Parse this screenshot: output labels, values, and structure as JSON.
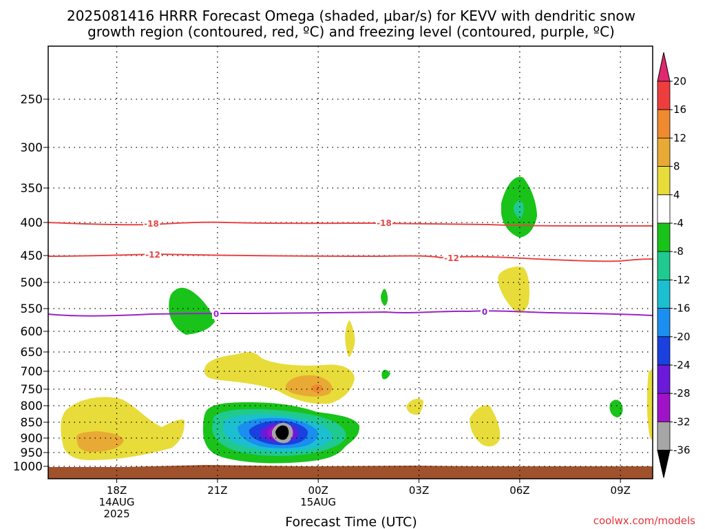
{
  "title_line1": "2025081416 HRRR Forecast Omega (shaded, μbar/s) for KEVV with dendritic snow",
  "title_line2": "growth region (contoured, red, ºC) and freezing level (contoured, purple, ºC)",
  "xlabel": "Forecast Time (UTC)",
  "credit": "coolwx.com/models",
  "chart_data": {
    "type": "heatmap",
    "x_axis": {
      "range_hours_utc": [
        "2025-08-14T16:00Z",
        "2025-08-15T10:00Z"
      ],
      "ticks": [
        {
          "label": "18Z",
          "sub": [
            "14AUG",
            "2025"
          ]
        },
        {
          "label": "21Z",
          "sub": []
        },
        {
          "label": "00Z",
          "sub": [
            "15AUG"
          ]
        },
        {
          "label": "03Z",
          "sub": []
        },
        {
          "label": "06Z",
          "sub": []
        },
        {
          "label": "09Z",
          "sub": []
        }
      ]
    },
    "y_axis": {
      "unit": "hPa",
      "ticks": [
        250,
        300,
        350,
        400,
        450,
        500,
        550,
        600,
        650,
        700,
        750,
        800,
        850,
        900,
        950,
        1000
      ],
      "range": [
        1013,
        200
      ],
      "grid": true
    },
    "colorbar": {
      "labels": [
        "20",
        "16",
        "12",
        "8",
        "4",
        "-4",
        "-8",
        "-12",
        "-16",
        "-20",
        "-24",
        "-28",
        "-32",
        "-36"
      ],
      "colors": [
        "#e0286e",
        "#ee3d3d",
        "#ee8a2f",
        "#e8aa35",
        "#e8dc3a",
        "#ffffff",
        "#19c319",
        "#20c98f",
        "#1bbfcf",
        "#1a8fef",
        "#1a40e0",
        "#6a1ad8",
        "#a012c8",
        "#a6a6a6",
        "#000000"
      ]
    },
    "contours": [
      {
        "name": "-18",
        "color": "#e84545",
        "approx_pressure_hPa": 400,
        "labels_at": [
          "19Z",
          "02Z"
        ]
      },
      {
        "name": "-12",
        "color": "#e84545",
        "approx_pressure_hPa": 455,
        "labels_at": [
          "19Z",
          "04Z"
        ]
      },
      {
        "name": "0",
        "color": "#9a22c8",
        "approx_pressure_hPa": 565,
        "labels_at": [
          "21Z",
          "05Z"
        ]
      }
    ],
    "ground_color": "#a0522d"
  }
}
